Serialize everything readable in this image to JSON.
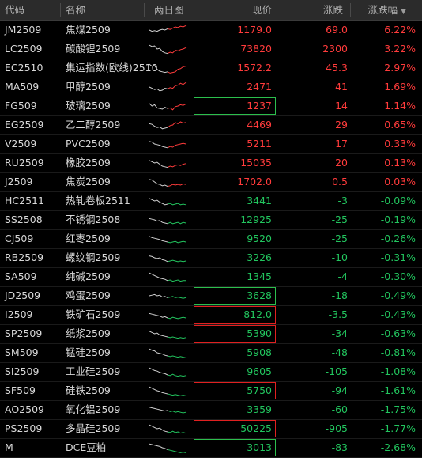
{
  "columns": [
    {
      "label": "代码"
    },
    {
      "label": "名称"
    },
    {
      "label": "两日图"
    },
    {
      "label": "现价"
    },
    {
      "label": "涨跌"
    },
    {
      "label": "涨跌幅",
      "sort_icon": "sort-desc-icon"
    }
  ],
  "colors": {
    "up": "#ff3b3b",
    "down": "#22c55e"
  },
  "rows": [
    {
      "code": "JM2509",
      "name": "焦煤2509",
      "price": "1179.0",
      "change": "69.0",
      "pct": "6.22%",
      "dir": "up",
      "box": "",
      "spark": [
        0.5,
        0.6,
        0.55,
        0.6,
        0.5,
        0.45,
        0.5,
        0.4,
        0.45,
        0.35,
        0.25,
        0.3,
        0.2,
        0.25,
        0.15
      ]
    },
    {
      "code": "LC2509",
      "name": "碳酸锂2509",
      "price": "73820",
      "change": "2300",
      "pct": "3.22%",
      "dir": "up",
      "box": "",
      "spark": [
        0.2,
        0.3,
        0.25,
        0.5,
        0.45,
        0.7,
        0.8,
        0.85,
        0.75,
        0.8,
        0.6,
        0.65,
        0.55,
        0.5,
        0.4
      ]
    },
    {
      "code": "EC2510",
      "name": "集运指数(欧线)2510",
      "price": "1572.2",
      "change": "45.3",
      "pct": "2.97%",
      "dir": "up",
      "box": "",
      "spark": [
        0.2,
        0.35,
        0.3,
        0.6,
        0.75,
        0.8,
        0.85,
        0.8,
        0.9,
        0.85,
        0.8,
        0.6,
        0.55,
        0.4,
        0.35
      ]
    },
    {
      "code": "MA509",
      "name": "甲醇2509",
      "price": "2471",
      "change": "41",
      "pct": "1.69%",
      "dir": "up",
      "box": "",
      "spark": [
        0.5,
        0.6,
        0.7,
        0.65,
        0.8,
        0.75,
        0.6,
        0.65,
        0.55,
        0.6,
        0.4,
        0.35,
        0.2,
        0.3,
        0.15
      ]
    },
    {
      "code": "FG509",
      "name": "玻璃2509",
      "price": "1237",
      "change": "14",
      "pct": "1.14%",
      "dir": "up",
      "box": "green",
      "spark": [
        0.3,
        0.5,
        0.4,
        0.65,
        0.7,
        0.75,
        0.6,
        0.7,
        0.65,
        0.8,
        0.55,
        0.5,
        0.4,
        0.45,
        0.35
      ]
    },
    {
      "code": "EG2509",
      "name": "乙二醇2509",
      "price": "4469",
      "change": "29",
      "pct": "0.65%",
      "dir": "up",
      "box": "",
      "spark": [
        0.4,
        0.45,
        0.6,
        0.7,
        0.65,
        0.8,
        0.75,
        0.7,
        0.55,
        0.5,
        0.3,
        0.4,
        0.25,
        0.35,
        0.3
      ]
    },
    {
      "code": "V2509",
      "name": "PVC2509",
      "price": "5211",
      "change": "17",
      "pct": "0.33%",
      "dir": "up",
      "box": "",
      "spark": [
        0.3,
        0.35,
        0.5,
        0.55,
        0.6,
        0.7,
        0.75,
        0.8,
        0.7,
        0.75,
        0.6,
        0.55,
        0.5,
        0.45,
        0.5
      ]
    },
    {
      "code": "RU2509",
      "name": "橡胶2509",
      "price": "15035",
      "change": "20",
      "pct": "0.13%",
      "dir": "up",
      "box": "",
      "spark": [
        0.3,
        0.4,
        0.5,
        0.45,
        0.6,
        0.75,
        0.8,
        0.85,
        0.75,
        0.8,
        0.7,
        0.65,
        0.7,
        0.6,
        0.55
      ]
    },
    {
      "code": "J2509",
      "name": "焦炭2509",
      "price": "1702.0",
      "change": "0.5",
      "pct": "0.03%",
      "dir": "up",
      "box": "",
      "spark": [
        0.3,
        0.35,
        0.5,
        0.65,
        0.7,
        0.8,
        0.75,
        0.85,
        0.8,
        0.7,
        0.75,
        0.7,
        0.75,
        0.65,
        0.7
      ]
    },
    {
      "code": "HC2511",
      "name": "热轧卷板2511",
      "price": "3441",
      "change": "-3",
      "pct": "-0.09%",
      "dir": "down",
      "box": "",
      "spark": [
        0.3,
        0.4,
        0.5,
        0.45,
        0.6,
        0.7,
        0.8,
        0.75,
        0.7,
        0.8,
        0.75,
        0.7,
        0.8,
        0.75,
        0.8
      ]
    },
    {
      "code": "SS2508",
      "name": "不锈钢2508",
      "price": "12925",
      "change": "-25",
      "pct": "-0.19%",
      "dir": "down",
      "box": "",
      "spark": [
        0.4,
        0.45,
        0.5,
        0.6,
        0.55,
        0.7,
        0.75,
        0.8,
        0.7,
        0.8,
        0.75,
        0.7,
        0.8,
        0.7,
        0.75
      ]
    },
    {
      "code": "CJ509",
      "name": "红枣2509",
      "price": "9520",
      "change": "-25",
      "pct": "-0.26%",
      "dir": "down",
      "box": "",
      "spark": [
        0.3,
        0.4,
        0.45,
        0.5,
        0.55,
        0.65,
        0.7,
        0.75,
        0.8,
        0.75,
        0.7,
        0.8,
        0.75,
        0.7,
        0.75
      ]
    },
    {
      "code": "RB2509",
      "name": "螺纹钢2509",
      "price": "3226",
      "change": "-10",
      "pct": "-0.31%",
      "dir": "down",
      "box": "",
      "spark": [
        0.35,
        0.4,
        0.5,
        0.55,
        0.5,
        0.65,
        0.7,
        0.8,
        0.75,
        0.7,
        0.75,
        0.8,
        0.75,
        0.8,
        0.75
      ]
    },
    {
      "code": "SA509",
      "name": "纯碱2509",
      "price": "1345",
      "change": "-4",
      "pct": "-0.30%",
      "dir": "down",
      "box": "",
      "spark": [
        0.2,
        0.3,
        0.4,
        0.5,
        0.6,
        0.65,
        0.7,
        0.8,
        0.75,
        0.85,
        0.8,
        0.75,
        0.85,
        0.8,
        0.8
      ]
    },
    {
      "code": "JD2509",
      "name": "鸡蛋2509",
      "price": "3628",
      "change": "-18",
      "pct": "-0.49%",
      "dir": "down",
      "box": "green",
      "spark": [
        0.5,
        0.45,
        0.4,
        0.5,
        0.45,
        0.6,
        0.55,
        0.65,
        0.6,
        0.55,
        0.65,
        0.6,
        0.65,
        0.7,
        0.65
      ]
    },
    {
      "code": "I2509",
      "name": "铁矿石2509",
      "price": "812.0",
      "change": "-3.5",
      "pct": "-0.43%",
      "dir": "down",
      "box": "red",
      "spark": [
        0.4,
        0.45,
        0.5,
        0.55,
        0.6,
        0.7,
        0.65,
        0.75,
        0.8,
        0.7,
        0.75,
        0.8,
        0.75,
        0.7,
        0.75
      ]
    },
    {
      "code": "SP2509",
      "name": "纸浆2509",
      "price": "5390",
      "change": "-34",
      "pct": "-0.63%",
      "dir": "down",
      "box": "red",
      "spark": [
        0.3,
        0.4,
        0.5,
        0.45,
        0.6,
        0.65,
        0.7,
        0.75,
        0.8,
        0.75,
        0.8,
        0.85,
        0.8,
        0.85,
        0.8
      ]
    },
    {
      "code": "SM509",
      "name": "锰硅2509",
      "price": "5908",
      "change": "-48",
      "pct": "-0.81%",
      "dir": "down",
      "box": "",
      "spark": [
        0.2,
        0.3,
        0.35,
        0.5,
        0.55,
        0.6,
        0.7,
        0.75,
        0.8,
        0.75,
        0.8,
        0.85,
        0.8,
        0.85,
        0.9
      ]
    },
    {
      "code": "SI2509",
      "name": "工业硅2509",
      "price": "9605",
      "change": "-105",
      "pct": "-1.08%",
      "dir": "down",
      "box": "",
      "spark": [
        0.2,
        0.3,
        0.4,
        0.45,
        0.55,
        0.6,
        0.65,
        0.75,
        0.8,
        0.7,
        0.8,
        0.85,
        0.8,
        0.85,
        0.8
      ]
    },
    {
      "code": "SF509",
      "name": "硅铁2509",
      "price": "5750",
      "change": "-94",
      "pct": "-1.61%",
      "dir": "down",
      "box": "red",
      "spark": [
        0.2,
        0.3,
        0.4,
        0.5,
        0.55,
        0.65,
        0.7,
        0.75,
        0.8,
        0.85,
        0.8,
        0.85,
        0.9,
        0.85,
        0.9
      ]
    },
    {
      "code": "AO2509",
      "name": "氧化铝2509",
      "price": "3359",
      "change": "-60",
      "pct": "-1.75%",
      "dir": "down",
      "box": "",
      "spark": [
        0.3,
        0.35,
        0.4,
        0.45,
        0.5,
        0.55,
        0.6,
        0.55,
        0.65,
        0.6,
        0.7,
        0.65,
        0.7,
        0.75,
        0.7
      ]
    },
    {
      "code": "PS2509",
      "name": "多晶硅2509",
      "price": "50225",
      "change": "-905",
      "pct": "-1.77%",
      "dir": "down",
      "box": "red",
      "spark": [
        0.2,
        0.3,
        0.4,
        0.5,
        0.45,
        0.6,
        0.7,
        0.75,
        0.8,
        0.7,
        0.8,
        0.75,
        0.85,
        0.8,
        0.85
      ]
    },
    {
      "code": "M",
      "name": "DCE豆粕",
      "price": "3013",
      "change": "-83",
      "pct": "-2.68%",
      "dir": "down",
      "box": "green",
      "spark": [
        0.2,
        0.25,
        0.3,
        0.35,
        0.4,
        0.5,
        0.55,
        0.65,
        0.7,
        0.75,
        0.8,
        0.85,
        0.9,
        0.85,
        0.9
      ]
    }
  ]
}
